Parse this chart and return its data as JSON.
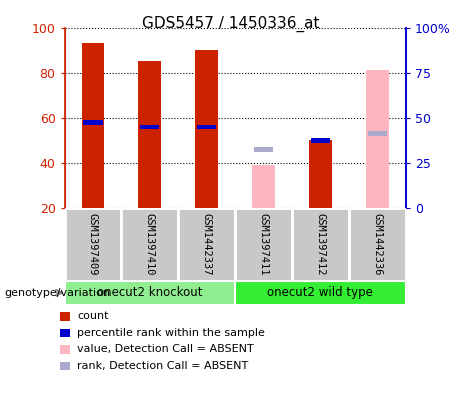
{
  "title": "GDS5457 / 1450336_at",
  "samples": [
    "GSM1397409",
    "GSM1397410",
    "GSM1442337",
    "GSM1397411",
    "GSM1397412",
    "GSM1442336"
  ],
  "group_labels": [
    "onecut2 knockout",
    "onecut2 wild type"
  ],
  "group_colors": [
    "#90EE90",
    "#33EE33"
  ],
  "count_values": [
    93,
    85,
    90,
    null,
    50,
    null
  ],
  "rank_values": [
    58,
    56,
    56,
    null,
    50,
    null
  ],
  "absent_value_values": [
    null,
    null,
    null,
    39,
    null,
    81
  ],
  "absent_rank_values": [
    null,
    null,
    null,
    46,
    null,
    53
  ],
  "left_ylim": [
    20,
    100
  ],
  "right_ylim": [
    0,
    100
  ],
  "left_yticks": [
    20,
    40,
    60,
    80,
    100
  ],
  "right_yticks": [
    0,
    25,
    50,
    75,
    100
  ],
  "right_yticklabels": [
    "0",
    "25",
    "50",
    "75",
    "100%"
  ],
  "left_color": "#CC2200",
  "right_color": "#0000CC",
  "count_bar_color": "#CC2200",
  "rank_bar_color": "#0000CC",
  "absent_value_color": "#FFB6C1",
  "absent_rank_color": "#AAAACC",
  "legend_items": [
    {
      "color": "#CC2200",
      "label": "count"
    },
    {
      "color": "#0000CC",
      "label": "percentile rank within the sample"
    },
    {
      "color": "#FFB6C1",
      "label": "value, Detection Call = ABSENT"
    },
    {
      "color": "#AAAACC",
      "label": "rank, Detection Call = ABSENT"
    }
  ]
}
